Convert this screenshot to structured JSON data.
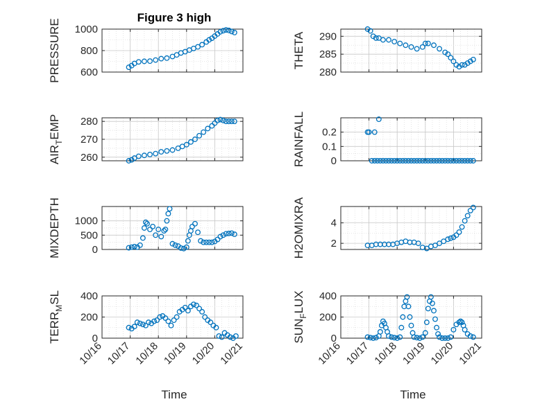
{
  "figure": {
    "title": "Figure 3 high",
    "xlabel": "Time"
  },
  "colors": {
    "marker": "#0072BD",
    "axis": "#262626",
    "grid": "#c8c8c8",
    "grid_minor": "#dedede"
  },
  "chart_data": [
    {
      "type": "scatter",
      "ylabel": "PRESSURE",
      "ylabel_sub": "",
      "xlim": [
        0,
        5
      ],
      "ylim": [
        600,
        1000
      ],
      "yticks": [
        600,
        800,
        1000
      ],
      "yticklabels": [
        "600",
        "800",
        "1000"
      ],
      "x": [
        0.95,
        1.05,
        1.15,
        1.3,
        1.5,
        1.7,
        1.9,
        2.1,
        2.3,
        2.5,
        2.65,
        2.8,
        2.95,
        3.1,
        3.25,
        3.4,
        3.55,
        3.7,
        3.8,
        3.9,
        4.0,
        4.1,
        4.2,
        4.3,
        4.4,
        4.5,
        4.6,
        4.7
      ],
      "y": [
        645,
        660,
        680,
        695,
        700,
        702,
        712,
        725,
        730,
        745,
        760,
        778,
        790,
        805,
        820,
        835,
        855,
        880,
        900,
        915,
        935,
        955,
        975,
        985,
        992,
        988,
        978,
        968
      ]
    },
    {
      "type": "scatter",
      "ylabel": "THETA",
      "ylabel_sub": "",
      "xlim": [
        0,
        5
      ],
      "ylim": [
        280,
        292
      ],
      "yticks": [
        280,
        285,
        290
      ],
      "yticklabels": [
        "280",
        "285",
        "290"
      ],
      "x": [
        0.95,
        1.05,
        1.15,
        1.25,
        1.35,
        1.5,
        1.7,
        1.9,
        2.1,
        2.3,
        2.5,
        2.7,
        2.9,
        3.0,
        3.1,
        3.3,
        3.5,
        3.7,
        3.8,
        3.9,
        4.0,
        4.1,
        4.2,
        4.3,
        4.4,
        4.5,
        4.6,
        4.7
      ],
      "y": [
        292,
        291.5,
        290,
        289.5,
        289.5,
        289,
        289,
        288.5,
        288,
        287.5,
        287,
        286.5,
        287,
        288,
        288,
        287.5,
        286.5,
        285.5,
        285,
        284,
        283,
        282,
        281.5,
        282,
        282,
        282.5,
        283,
        283.5
      ]
    },
    {
      "type": "scatter",
      "ylabel": "AIR",
      "ylabel_sub": "T",
      "ylabel_rest": "EMP",
      "xlim": [
        0,
        5
      ],
      "ylim": [
        258,
        282
      ],
      "yticks": [
        260,
        270,
        280
      ],
      "yticklabels": [
        "260",
        "270",
        "280"
      ],
      "x": [
        0.95,
        1.05,
        1.15,
        1.3,
        1.5,
        1.7,
        1.9,
        2.1,
        2.3,
        2.5,
        2.7,
        2.85,
        3.0,
        3.15,
        3.3,
        3.45,
        3.6,
        3.75,
        3.9,
        4.0,
        4.1,
        4.2,
        4.3,
        4.4,
        4.5,
        4.6,
        4.7
      ],
      "y": [
        258,
        258.5,
        259.5,
        260.5,
        261,
        261.5,
        262,
        263,
        263.5,
        264,
        265,
        266,
        267,
        268.5,
        270,
        272,
        274,
        276,
        277.5,
        279,
        280.5,
        281,
        280.5,
        280,
        280,
        280,
        280
      ]
    },
    {
      "type": "scatter",
      "ylabel": "RAINFALL",
      "ylabel_sub": "",
      "xlim": [
        0,
        5
      ],
      "ylim": [
        0,
        0.3
      ],
      "yticks": [
        0,
        0.1,
        0.2
      ],
      "yticklabels": [
        "0",
        "0.1",
        "0.2"
      ],
      "x": [
        0.95,
        1.0,
        1.2,
        1.35,
        1.1,
        1.2,
        1.3,
        1.4,
        1.5,
        1.6,
        1.7,
        1.8,
        1.9,
        2.0,
        2.1,
        2.2,
        2.3,
        2.4,
        2.5,
        2.6,
        2.7,
        2.8,
        2.9,
        3.0,
        3.1,
        3.2,
        3.3,
        3.4,
        3.5,
        3.6,
        3.7,
        3.8,
        3.9,
        4.0,
        4.1,
        4.2,
        4.3,
        4.4,
        4.5,
        4.6,
        4.7
      ],
      "y": [
        0.2,
        0.2,
        0.2,
        0.29,
        0,
        0,
        0,
        0,
        0,
        0,
        0,
        0,
        0,
        0,
        0,
        0,
        0,
        0,
        0,
        0,
        0,
        0,
        0,
        0,
        0,
        0,
        0,
        0,
        0,
        0,
        0,
        0,
        0,
        0,
        0,
        0,
        0,
        0,
        0,
        0,
        0
      ]
    },
    {
      "type": "scatter",
      "ylabel": "MIXDEPTH",
      "ylabel_sub": "",
      "xlim": [
        0,
        5
      ],
      "ylim": [
        0,
        1500
      ],
      "yticks": [
        0,
        500,
        1000
      ],
      "yticklabels": [
        "0",
        "500",
        "1000"
      ],
      "x": [
        0.95,
        1.05,
        1.15,
        1.25,
        1.35,
        1.45,
        1.5,
        1.55,
        1.6,
        1.7,
        1.8,
        1.9,
        2.0,
        2.1,
        2.2,
        2.25,
        2.3,
        2.35,
        2.4,
        2.5,
        2.6,
        2.7,
        2.8,
        2.9,
        3.0,
        3.05,
        3.1,
        3.15,
        3.2,
        3.3,
        3.4,
        3.5,
        3.6,
        3.7,
        3.8,
        3.9,
        4.0,
        4.1,
        4.2,
        4.3,
        4.4,
        4.5,
        4.6,
        4.7
      ],
      "y": [
        60,
        80,
        100,
        80,
        150,
        400,
        750,
        950,
        900,
        700,
        800,
        500,
        700,
        450,
        650,
        700,
        1000,
        1250,
        1420,
        200,
        150,
        120,
        50,
        30,
        80,
        300,
        500,
        650,
        800,
        900,
        600,
        300,
        250,
        250,
        250,
        250,
        280,
        350,
        450,
        500,
        550,
        560,
        570,
        530
      ]
    },
    {
      "type": "scatter",
      "ylabel": "H2OMIXRA",
      "ylabel_sub": "",
      "xlim": [
        0,
        5
      ],
      "ylim": [
        1.4,
        5.6
      ],
      "yticks": [
        2,
        4
      ],
      "yticklabels": [
        "2",
        "4"
      ],
      "x": [
        0.95,
        1.1,
        1.25,
        1.4,
        1.55,
        1.7,
        1.85,
        2.0,
        2.15,
        2.3,
        2.45,
        2.6,
        2.75,
        2.9,
        3.05,
        3.2,
        3.35,
        3.5,
        3.65,
        3.8,
        3.9,
        4.0,
        4.1,
        4.2,
        4.3,
        4.4,
        4.5,
        4.6,
        4.7
      ],
      "y": [
        1.8,
        1.8,
        1.9,
        1.9,
        1.9,
        1.9,
        1.9,
        2.0,
        2.1,
        2.2,
        2.1,
        2.1,
        2.0,
        1.6,
        1.5,
        1.7,
        1.8,
        2.0,
        2.2,
        2.4,
        2.5,
        2.6,
        2.8,
        3.1,
        3.6,
        4.2,
        4.7,
        5.2,
        5.5
      ]
    },
    {
      "type": "scatter",
      "ylabel": "TERR",
      "ylabel_sub": "M",
      "ylabel_rest": "SL",
      "xlim": [
        0,
        5
      ],
      "ylim": [
        0,
        400
      ],
      "yticks": [
        0,
        200,
        400
      ],
      "yticklabels": [
        "0",
        "200",
        "400"
      ],
      "x": [
        0.95,
        1.05,
        1.15,
        1.25,
        1.35,
        1.45,
        1.55,
        1.65,
        1.75,
        1.85,
        1.95,
        2.05,
        2.15,
        2.25,
        2.35,
        2.45,
        2.55,
        2.65,
        2.75,
        2.85,
        2.95,
        3.05,
        3.15,
        3.25,
        3.35,
        3.45,
        3.55,
        3.65,
        3.75,
        3.85,
        3.95,
        4.05,
        4.15,
        4.25,
        4.35,
        4.45,
        4.55,
        4.65,
        4.75
      ],
      "y": [
        100,
        90,
        110,
        150,
        140,
        130,
        120,
        150,
        140,
        160,
        170,
        200,
        210,
        190,
        160,
        120,
        170,
        200,
        250,
        270,
        290,
        260,
        300,
        320,
        310,
        280,
        250,
        200,
        170,
        150,
        120,
        100,
        20,
        10,
        50,
        30,
        10,
        0,
        20
      ]
    },
    {
      "type": "scatter",
      "ylabel": "SUN",
      "ylabel_sub": "F",
      "ylabel_rest": "LUX",
      "xlim": [
        0,
        5
      ],
      "ylim": [
        0,
        400
      ],
      "yticks": [
        0,
        200,
        400
      ],
      "yticklabels": [
        "0",
        "200",
        "400"
      ],
      "x": [
        0.95,
        1.05,
        1.15,
        1.25,
        1.35,
        1.4,
        1.45,
        1.5,
        1.55,
        1.6,
        1.65,
        1.7,
        1.8,
        1.9,
        2.0,
        2.1,
        2.15,
        2.2,
        2.25,
        2.3,
        2.35,
        2.4,
        2.45,
        2.5,
        2.55,
        2.6,
        2.7,
        2.8,
        2.9,
        3.0,
        3.05,
        3.1,
        3.15,
        3.2,
        3.25,
        3.3,
        3.35,
        3.4,
        3.45,
        3.5,
        3.6,
        3.7,
        3.8,
        3.9,
        4.0,
        4.1,
        4.2,
        4.25,
        4.3,
        4.35,
        4.4,
        4.5,
        4.6,
        4.7
      ],
      "y": [
        10,
        5,
        0,
        5,
        20,
        60,
        120,
        160,
        140,
        100,
        60,
        20,
        10,
        5,
        0,
        10,
        100,
        200,
        300,
        350,
        390,
        300,
        200,
        120,
        50,
        10,
        5,
        0,
        10,
        50,
        150,
        280,
        350,
        390,
        330,
        260,
        180,
        100,
        40,
        10,
        0,
        0,
        0,
        10,
        80,
        130,
        150,
        160,
        150,
        120,
        80,
        40,
        20,
        10
      ]
    }
  ],
  "xaxis": {
    "ticks": [
      0,
      1,
      2,
      3,
      4,
      5
    ],
    "ticklabels": [
      "10/16",
      "10/17",
      "10/18",
      "10/19",
      "10/20",
      "10/21"
    ]
  }
}
